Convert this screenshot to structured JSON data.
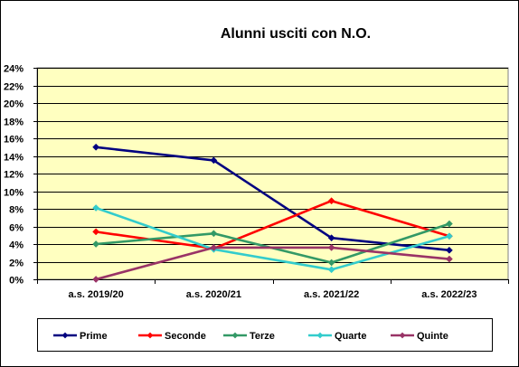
{
  "chart_data": {
    "type": "line",
    "title": "Alunni usciti con N.O.",
    "xlabel": "",
    "ylabel": "",
    "categories": [
      "a.s. 2019/20",
      "a.s. 2020/21",
      "a.s. 2021/22",
      "a.s. 2022/23"
    ],
    "ylim": [
      0,
      24
    ],
    "yticks": [
      "0%",
      "2%",
      "4%",
      "6%",
      "8%",
      "10%",
      "12%",
      "14%",
      "16%",
      "18%",
      "20%",
      "22%",
      "24%"
    ],
    "ytick_values": [
      0,
      2,
      4,
      6,
      8,
      10,
      12,
      14,
      16,
      18,
      20,
      22,
      24
    ],
    "grid": true,
    "plot_background": "#ffffc0",
    "legend_position": "bottom",
    "series": [
      {
        "name": "Prime",
        "color": "#000080",
        "values": [
          15.0,
          13.5,
          4.7,
          3.3
        ]
      },
      {
        "name": "Seconde",
        "color": "#ff0000",
        "values": [
          5.4,
          3.5,
          8.9,
          4.9
        ]
      },
      {
        "name": "Terze",
        "color": "#339966",
        "values": [
          4.0,
          5.2,
          1.9,
          6.3
        ]
      },
      {
        "name": "Quarte",
        "color": "#33cccc",
        "values": [
          8.1,
          3.4,
          1.1,
          4.9
        ]
      },
      {
        "name": "Quinte",
        "color": "#993366",
        "values": [
          0.0,
          3.6,
          3.6,
          2.3
        ]
      }
    ]
  }
}
